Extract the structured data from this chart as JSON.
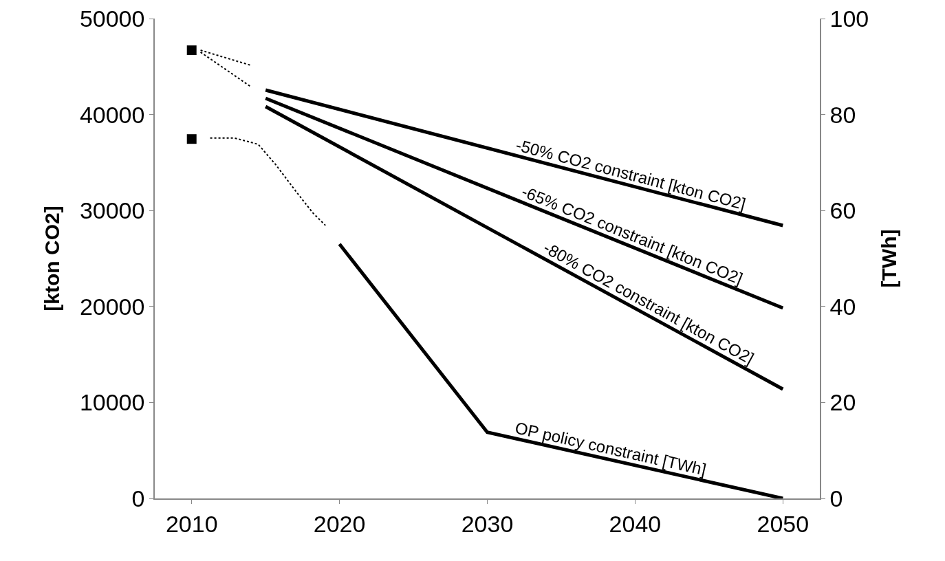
{
  "chart_data": {
    "type": "line",
    "ylabel": "[kton CO2]",
    "y2label": "[TWh]",
    "xlim": [
      2007.5,
      2052.5
    ],
    "xticks": [
      2010,
      2020,
      2030,
      2040,
      2050
    ],
    "ylim": [
      0,
      50000
    ],
    "yticks": [
      0,
      10000,
      20000,
      30000,
      40000,
      50000
    ],
    "y2lim": [
      0,
      100
    ],
    "y2ticks": [
      0,
      20,
      40,
      60,
      80,
      100
    ],
    "grid": false,
    "legend": false,
    "line_style": "solid",
    "marker": "none",
    "series": [
      {
        "name": "-50% CO2 constraint [kton CO2]",
        "color": "#000000",
        "x": [
          2015,
          2050
        ],
        "values": [
          42550,
          28440
        ]
      },
      {
        "name": "-65% CO2 constraint [kton CO2]",
        "color": "#000000",
        "x": [
          2015,
          2050
        ],
        "values": [
          41690,
          19840
        ]
      },
      {
        "name": "-80% CO2 constraint [kton CO2]",
        "color": "#000000",
        "x": [
          2015,
          2050
        ],
        "values": [
          40830,
          11390
        ]
      },
      {
        "name": "OP policy constraint [TWh]",
        "color": "#000000",
        "axis": "y2",
        "x": [
          2020,
          2030,
          2050
        ],
        "values": [
          53,
          13.8,
          0
        ]
      },
      {
        "color": "#000000",
        "type": "scatter",
        "marker": "square",
        "x": [
          2010
        ],
        "values": [
          46700
        ]
      },
      {
        "color": "#000000",
        "type": "scatter",
        "marker": "square",
        "axis": "y2",
        "x": [
          2010
        ],
        "values": [
          74.9
        ]
      },
      {
        "color": "#000000",
        "line_style": "dotted",
        "x": [
          2010.6,
          2014.0
        ],
        "values": [
          46700,
          45130
        ]
      },
      {
        "color": "#000000",
        "line_style": "dotted",
        "x": [
          2010.6,
          2014.0
        ],
        "values": [
          46500,
          42900
        ]
      },
      {
        "color": "#000000",
        "line_style": "dotted",
        "axis": "y2",
        "x": [
          2011.25,
          2012.9,
          2014.5,
          2015.7,
          2017.1,
          2018.2,
          2019.05
        ],
        "values": [
          75.1,
          75.1,
          73.8,
          69.5,
          63.8,
          59.5,
          56.9
        ]
      }
    ]
  }
}
